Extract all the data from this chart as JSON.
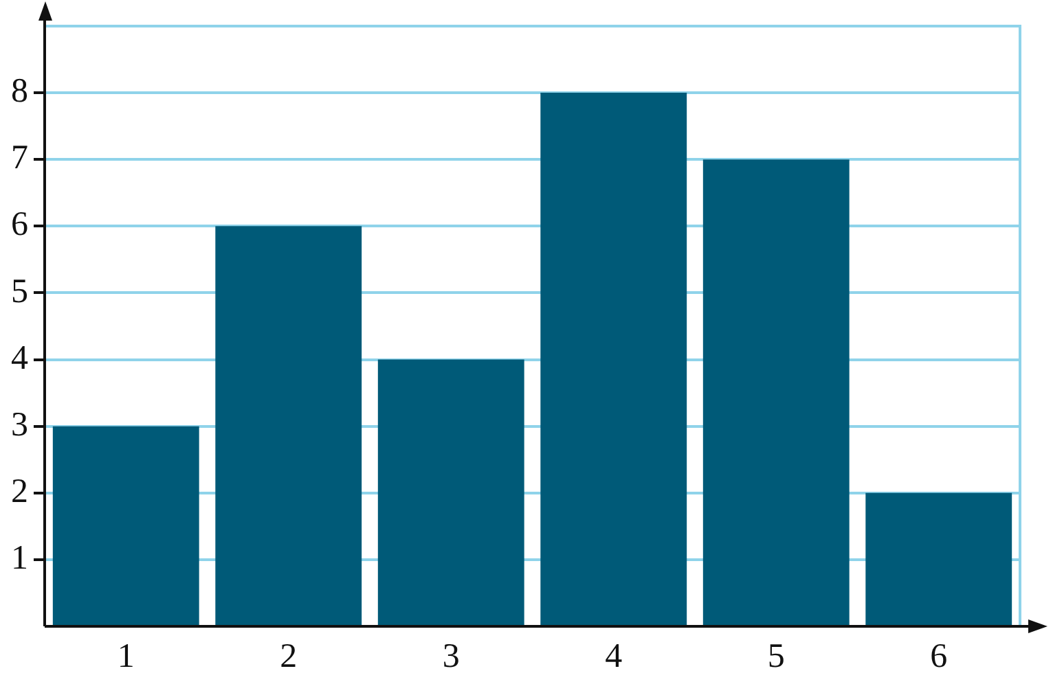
{
  "chart_data": {
    "type": "bar",
    "categories": [
      "1",
      "2",
      "3",
      "4",
      "5",
      "6"
    ],
    "values": [
      3,
      6,
      4,
      8,
      7,
      2
    ],
    "color": "#005a78",
    "ylim": [
      0,
      9
    ],
    "yticks": [
      1,
      2,
      3,
      4,
      5,
      6,
      7,
      8
    ],
    "grid": "y"
  }
}
